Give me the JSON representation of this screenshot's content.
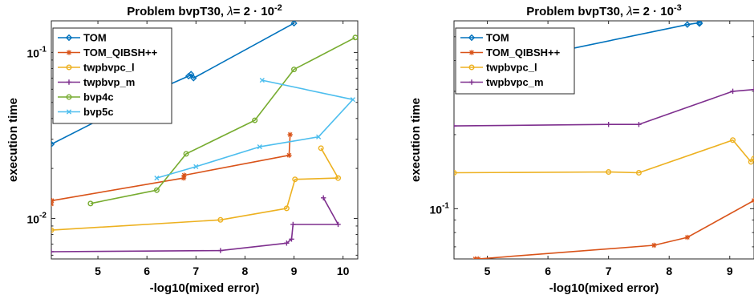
{
  "chart_data": [
    {
      "type": "line",
      "title_main": "Problem bvpT30, ",
      "title_lambda": "λ",
      "title_eq": "= 2 · 10",
      "title_exp": "-2",
      "xlabel": "-log10(mixed error)",
      "ylabel": "execution time",
      "xscale": "linear",
      "yscale": "log",
      "xlim": [
        4.05,
        10.3
      ],
      "ylim": [
        0.0057,
        0.155
      ],
      "xticks": [
        5,
        6,
        7,
        8,
        9,
        10
      ],
      "yticks": [
        {
          "value": 0.01,
          "base": "10",
          "exp": "-2"
        },
        {
          "value": 0.1,
          "base": "10",
          "exp": "-1"
        }
      ],
      "legend_position": "top-left",
      "series": [
        {
          "name": "TOM",
          "color": "#0072BD",
          "marker": "diamond",
          "x": [
            4.05,
            6.35,
            6.85,
            6.9,
            6.95,
            9.0
          ],
          "y": [
            0.028,
            0.062,
            0.072,
            0.074,
            0.07,
            0.15
          ]
        },
        {
          "name": "TOM\\_QIBSH++",
          "color": "#D95319",
          "marker": "star",
          "x": [
            4.05,
            4.06,
            6.75,
            6.76,
            8.9,
            8.92
          ],
          "y": [
            0.0122,
            0.0128,
            0.0175,
            0.0182,
            0.024,
            0.032
          ]
        },
        {
          "name": "twpbvpc\\_l",
          "color": "#EDB120",
          "marker": "circle",
          "x": [
            4.05,
            7.5,
            8.85,
            9.02,
            9.9,
            9.55
          ],
          "y": [
            0.0085,
            0.0098,
            0.0115,
            0.0172,
            0.0175,
            0.0265
          ]
        },
        {
          "name": "twpbvp\\_m",
          "color": "#7E2F8E",
          "marker": "plus",
          "x": [
            4.05,
            7.5,
            8.85,
            8.95,
            8.98,
            9.9,
            9.6
          ],
          "y": [
            0.0063,
            0.0064,
            0.0071,
            0.0075,
            0.0092,
            0.0092,
            0.0133
          ]
        },
        {
          "name": "bvp4c",
          "color": "#77AC30",
          "marker": "circle",
          "x": [
            4.85,
            6.2,
            6.8,
            8.2,
            9.0,
            10.25
          ],
          "y": [
            0.0123,
            0.0148,
            0.0245,
            0.039,
            0.079,
            0.123
          ]
        },
        {
          "name": "bvp5c",
          "color": "#4DBEEE",
          "marker": "x",
          "x": [
            6.2,
            7.0,
            8.3,
            9.5,
            10.2,
            8.35
          ],
          "y": [
            0.0175,
            0.0205,
            0.027,
            0.031,
            0.052,
            0.068
          ]
        }
      ]
    },
    {
      "type": "line",
      "title_main": "Problem bvpT30, ",
      "title_lambda": "λ",
      "title_eq": "= 2 · 10",
      "title_exp": "-3",
      "xlabel": "-log10(mixed error)",
      "ylabel": "execution time",
      "xscale": "linear",
      "yscale": "log",
      "xlim": [
        4.45,
        9.4
      ],
      "ylim": [
        0.0625,
        0.58
      ],
      "xticks": [
        5,
        6,
        7,
        8,
        9
      ],
      "yticks": [
        {
          "value": 0.1,
          "base": "10",
          "exp": "-1"
        }
      ],
      "legend_position": "top-left",
      "series": [
        {
          "name": "TOM",
          "color": "#0072BD",
          "marker": "diamond",
          "x": [
            6.25,
            8.3,
            8.5,
            8.5
          ],
          "y": [
            0.44,
            0.56,
            0.57,
            0.565
          ]
        },
        {
          "name": "TOM\\_QIBSH++",
          "color": "#D95319",
          "marker": "star",
          "x": [
            4.8,
            4.85,
            7.75,
            8.3,
            9.4
          ],
          "y": [
            0.0625,
            0.0625,
            0.071,
            0.0765,
            0.108
          ]
        },
        {
          "name": "twpbvpc\\_l",
          "color": "#EDB120",
          "marker": "circle",
          "x": [
            4.45,
            7.0,
            7.5,
            9.05,
            9.35,
            9.4
          ],
          "y": [
            0.14,
            0.141,
            0.14,
            0.19,
            0.155,
            0.16
          ]
        },
        {
          "name": "twpbvpc\\_m",
          "color": "#7E2F8E",
          "marker": "plus",
          "x": [
            4.45,
            7.0,
            7.5,
            9.05,
            9.4
          ],
          "y": [
            0.217,
            0.22,
            0.22,
            0.3,
            0.305
          ]
        }
      ]
    }
  ]
}
